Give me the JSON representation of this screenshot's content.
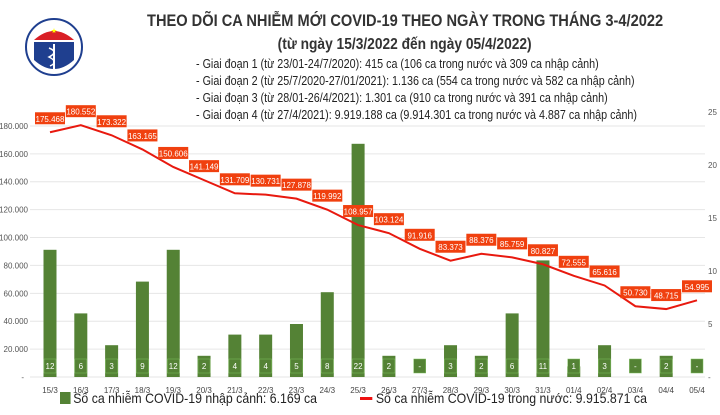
{
  "header": {
    "title": "THEO DÕI CA NHIỄM MỚI COVID-19 THEO NGÀY TRONG THÁNG 3-4/2022",
    "subtitle": "(từ ngày 15/3/2022 đến ngày 05/4/2022)",
    "phases": [
      "- Giai đoạn 1 (từ 23/01-24/7/2020): 415 ca (106 ca trong nước và 309 ca nhập cảnh)",
      "- Giai đoạn 2 (từ 25/7/2020-27/01/2021): 1.136 ca (554 ca trong nước và 582 ca nhập cảnh)",
      "- Giai đoạn 3 (từ 28/01-26/4/2021): 1.301 ca (910 ca trong nước và 391 ca nhập cảnh)",
      "- Giai đoạn 4 (từ 27/4/2021): 9.919.188 ca (9.914.301 ca trong nước và 4.887 ca nhập cảnh)"
    ],
    "logo_text": "BỘ Y TẾ MINISTRY OF HEALTH"
  },
  "chart_data": {
    "type": "bar+line",
    "categories": [
      "15/3",
      "16/3",
      "17/3",
      "18/3",
      "19/3",
      "20/3",
      "21/3",
      "22/3",
      "23/3",
      "24/3",
      "25/3",
      "26/3",
      "27/3",
      "28/3",
      "29/3",
      "30/3",
      "31/3",
      "01/4",
      "02/4",
      "03/4",
      "04/4",
      "05/4"
    ],
    "series": [
      {
        "name": "Số ca nhiễm COVID-19 nhập cảnh: 6.169 ca",
        "type": "bar",
        "axis": "right",
        "color": "#548235",
        "values": [
          12,
          6,
          3,
          9,
          12,
          2,
          4,
          4,
          5,
          8,
          22,
          2,
          0,
          3,
          2,
          6,
          11,
          1,
          3,
          0,
          2,
          0
        ],
        "labels": [
          "12",
          "6",
          "3",
          "9",
          "12",
          "2",
          "4",
          "4",
          "5",
          "8",
          "22",
          "2",
          "-",
          "3",
          "2",
          "6",
          "11",
          "1",
          "3",
          "-",
          "2",
          "-"
        ]
      },
      {
        "name": "Số ca nhiễm COVID-19 trong nước: 9.915.871 ca",
        "type": "line",
        "axis": "left",
        "color": "#e8190f",
        "values": [
          175468,
          180552,
          173322,
          163165,
          150606,
          141149,
          131709,
          130731,
          127878,
          119992,
          108957,
          103124,
          91916,
          83373,
          88376,
          85759,
          80827,
          72555,
          65616,
          50730,
          48715,
          54995
        ],
        "labels": [
          "175.468",
          "180.552",
          "173.322",
          "163.165",
          "150.606",
          "141.149",
          "131.709",
          "130.731",
          "127.878",
          "119.992",
          "108.957",
          "103.124",
          "91.916",
          "83.373",
          "88.376",
          "85.759",
          "80.827",
          "72.555",
          "65.616",
          "50.730",
          "48.715",
          "54.995"
        ]
      }
    ],
    "left_axis": {
      "ylim": [
        0,
        190000
      ],
      "ticks": [
        "-",
        "20.000",
        "40.000",
        "60.000",
        "80.000",
        "100.000",
        "120.000",
        "140.000",
        "160.000",
        "180.000"
      ]
    },
    "right_axis": {
      "ylim": [
        0,
        25
      ],
      "ticks": [
        "-",
        "5",
        "10",
        "15",
        "20",
        "25"
      ]
    },
    "grid": true,
    "legend_placement": "bottom"
  }
}
